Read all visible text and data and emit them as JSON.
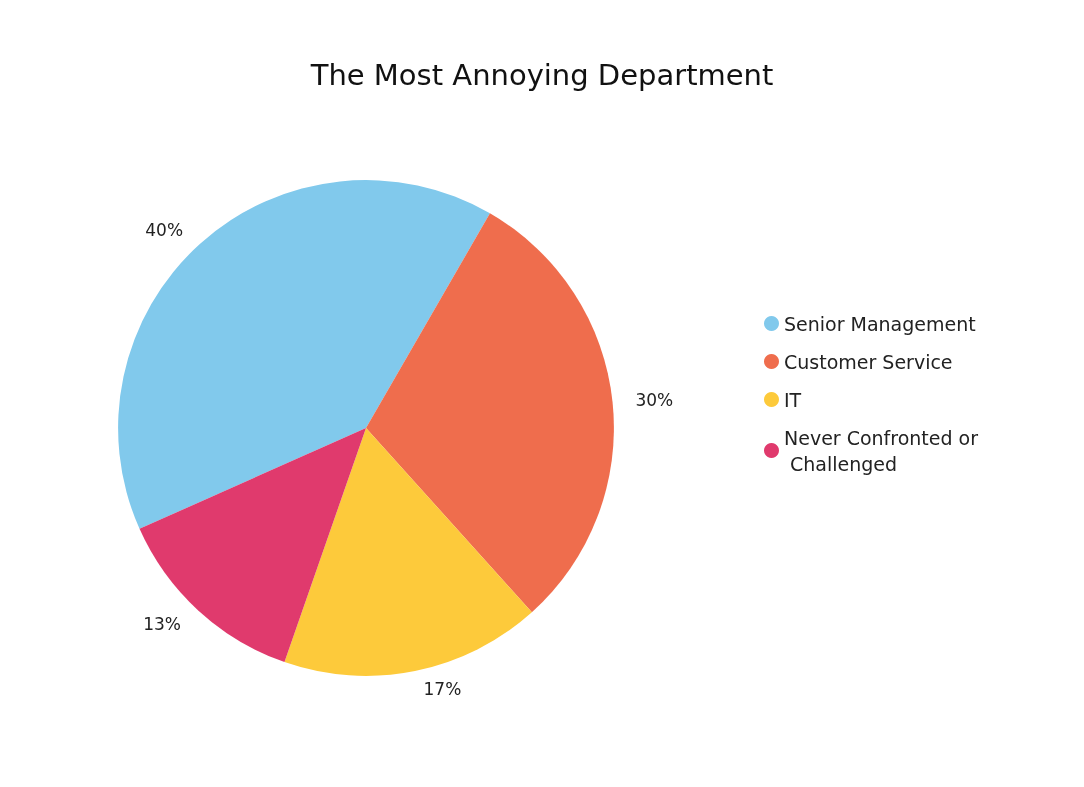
{
  "chart_data": {
    "type": "pie",
    "title": "The Most Annoying Department",
    "categories": [
      "Senior Management",
      "Customer Service",
      "IT",
      "Never Confronted or Challenged"
    ],
    "values": [
      40,
      30,
      17,
      13
    ],
    "value_labels": [
      "40%",
      "30%",
      "17%",
      "13%"
    ],
    "colors": [
      "#81c9ec",
      "#ef6d4d",
      "#fdca3b",
      "#e03a6d"
    ],
    "legend": "right"
  }
}
